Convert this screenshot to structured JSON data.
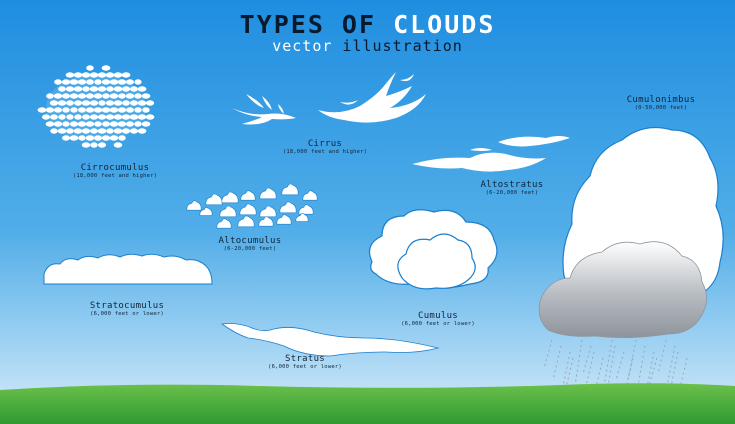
{
  "title": {
    "part1": "TYPES OF ",
    "part2": "CLOUDS"
  },
  "subtitle": {
    "part1": "vector ",
    "part2": "illustration"
  },
  "colors": {
    "sky_top": "#1f8ee0",
    "sky_bottom": "#d8ecfa",
    "cloud_fill": "#ffffff",
    "cloud_outline": "#1b7fce",
    "grass": "#2f9a33",
    "grass_light": "#6cc04a",
    "storm_cloud": "#b7bcc2",
    "rain": "#9aa6b0"
  },
  "clouds": [
    {
      "id": "cirrocumulus",
      "name": "Cirrocumulus",
      "altitude": "(18,000 feet and higher)"
    },
    {
      "id": "cirrus",
      "name": "Cirrus",
      "altitude": "(18,000 feet and higher)"
    },
    {
      "id": "cumulonimbus",
      "name": "Cumulonimbus",
      "altitude": "(0-50,000 feet)"
    },
    {
      "id": "altostratus",
      "name": "Altostratus",
      "altitude": "(6-20,000 feet)"
    },
    {
      "id": "altocumulus",
      "name": "Altocumulus",
      "altitude": "(6-20,000 feet)"
    },
    {
      "id": "stratocumulus",
      "name": "Stratocumulus",
      "altitude": "(6,000 feet or lower)"
    },
    {
      "id": "cumulus",
      "name": "Cumulus",
      "altitude": "(6,000 feet or lower)"
    },
    {
      "id": "stratus",
      "name": "Stratus",
      "altitude": "(6,000 feet or lower)"
    }
  ]
}
